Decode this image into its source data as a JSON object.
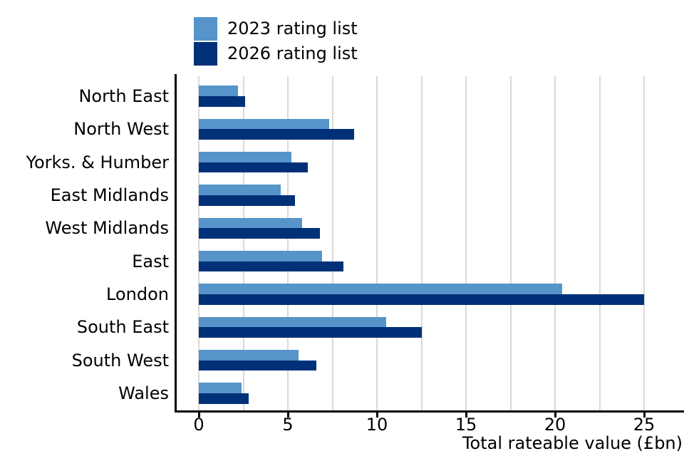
{
  "legend": {
    "items": [
      {
        "label": "2023 rating list",
        "color": "#5694ca"
      },
      {
        "label": "2026 rating list",
        "color": "#003078"
      }
    ]
  },
  "x_axis": {
    "label": "Total rateable value (£bn)"
  },
  "colors": {
    "bar_2023": "#5694ca",
    "bar_2026": "#003078",
    "gridline": "#d9d9d9",
    "axis": "#000000",
    "text": "#000000",
    "background": "#ffffff"
  },
  "chart_data": {
    "type": "bar",
    "orientation": "horizontal",
    "title": "",
    "xlabel": "Total rateable value (£bn)",
    "ylabel": "",
    "categories": [
      "North East",
      "North West",
      "Yorks. & Humber",
      "East Midlands",
      "West Midlands",
      "East",
      "London",
      "South East",
      "South West",
      "Wales"
    ],
    "series": [
      {
        "name": "2023 rating list",
        "color": "#5694ca",
        "values": [
          2.2,
          7.3,
          5.2,
          4.6,
          5.8,
          6.9,
          20.4,
          10.5,
          5.6,
          2.4
        ]
      },
      {
        "name": "2026 rating list",
        "color": "#003078",
        "values": [
          2.6,
          8.7,
          6.1,
          5.4,
          6.8,
          8.1,
          25.0,
          12.5,
          6.6,
          2.8
        ]
      }
    ],
    "x_ticks": [
      0,
      5,
      10,
      15,
      20,
      25
    ],
    "xlim": [
      0,
      27.2
    ],
    "grid": {
      "axis": "x",
      "step": 2.5,
      "max": 25,
      "on": true
    },
    "legend_position": "top-left-outside"
  }
}
